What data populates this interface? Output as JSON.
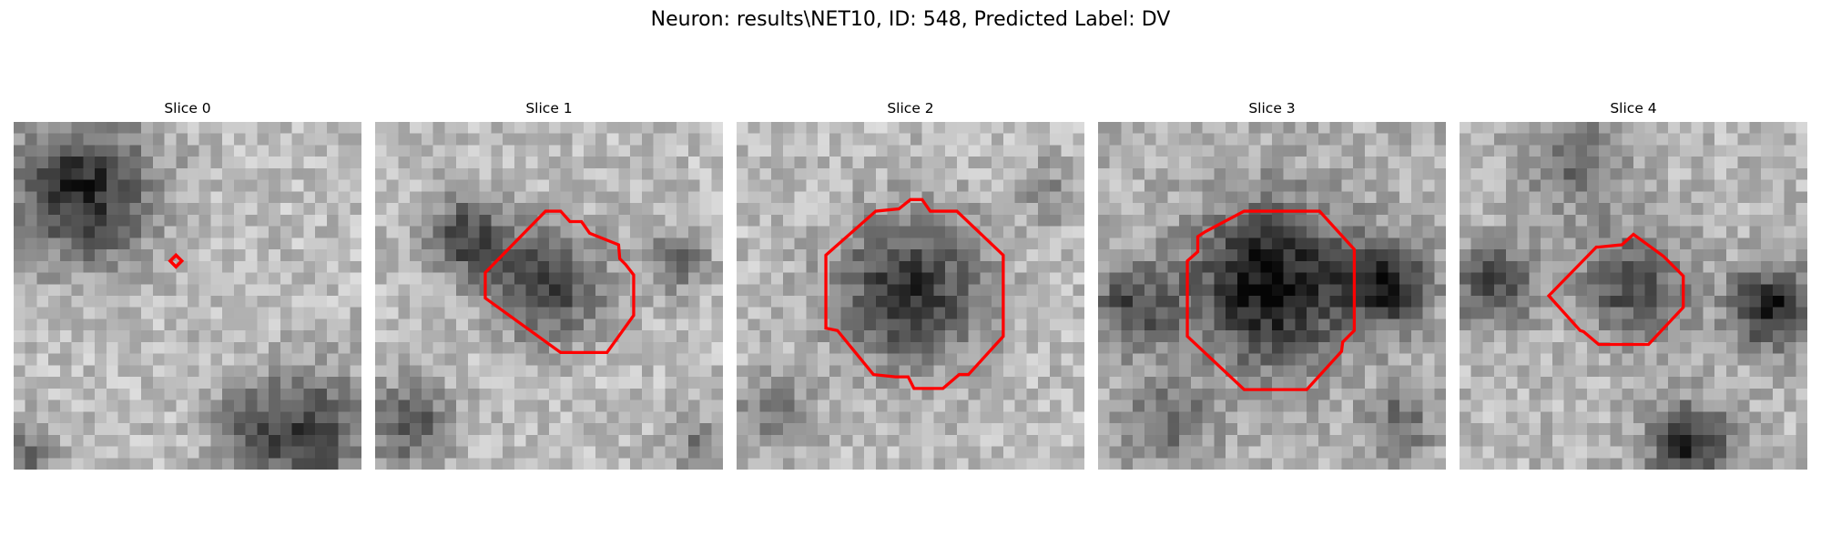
{
  "figure": {
    "title": "Neuron: results\\NET10, ID: 548, Predicted Label: DV"
  },
  "panels": [
    {
      "title": "Slice 0"
    },
    {
      "title": "Slice 1"
    },
    {
      "title": "Slice 2"
    },
    {
      "title": "Slice 3"
    },
    {
      "title": "Slice 4"
    }
  ],
  "colors": {
    "contour": "#ff0000",
    "colormap": "grayscale"
  }
}
